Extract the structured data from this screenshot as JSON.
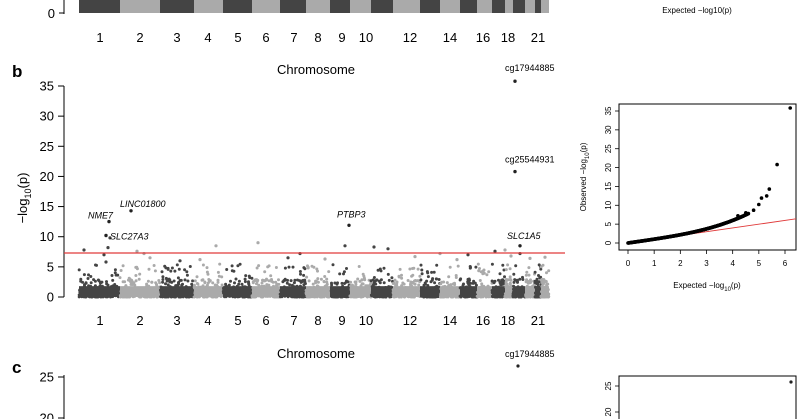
{
  "panels": {
    "a": {
      "chrom_ticks": [
        "1",
        "2",
        "3",
        "4",
        "5",
        "6",
        "7",
        "8",
        "9",
        "10",
        "12",
        "14",
        "16",
        "18",
        "21"
      ],
      "y_ticks_visible": [
        0
      ],
      "qq_xlabel": "Expected −log10(p)"
    },
    "b": {
      "letter": "b",
      "title": "Chromosome",
      "xlabel": "Chromosome",
      "ylabel": "−log10(p)",
      "qq_xlabel": "Expected −log10(p)",
      "qq_ylabel": "Observed −log10(p)"
    },
    "c": {
      "letter": "c",
      "title": "Chromosome",
      "probe_label": "cg17944885",
      "y_ticks": [
        20,
        25
      ],
      "qq_y_ticks": [
        20,
        25
      ],
      "top_point": 26.1
    }
  },
  "chart_data": [
    {
      "type": "scatter",
      "subtype": "manhattan",
      "panel": "b",
      "title": "Chromosome",
      "xlabel": "Chromosome",
      "ylabel": "−log10(p)",
      "ylim": [
        0,
        35
      ],
      "y_ticks": [
        0,
        5,
        10,
        15,
        20,
        25,
        30,
        35
      ],
      "chromosomes": [
        "1",
        "2",
        "3",
        "4",
        "5",
        "6",
        "7",
        "8",
        "9",
        "10",
        "11",
        "12",
        "13",
        "14",
        "15",
        "16",
        "17",
        "18",
        "19",
        "20",
        "21",
        "22"
      ],
      "chrom_tick_labels": [
        "1",
        "2",
        "3",
        "4",
        "5",
        "6",
        "7",
        "8",
        "9",
        "10",
        "12",
        "14",
        "16",
        "18",
        "21"
      ],
      "significance_threshold": 7.3,
      "threshold_color": "#e03a3a",
      "colors": [
        "#444444",
        "#aaaaaa"
      ],
      "annotated_points": [
        {
          "label": "cg17944885",
          "chrom": "19",
          "y": 35.8
        },
        {
          "label": "cg25544931",
          "chrom": "19",
          "y": 20.8
        },
        {
          "label": "LINC01800",
          "chrom": "1",
          "y": 14.3,
          "italic": true
        },
        {
          "label": "NME7",
          "chrom": "1",
          "y": 12.5,
          "italic": true
        },
        {
          "label": "SLC27A3",
          "chrom": "1",
          "y": 10.2,
          "italic": true
        },
        {
          "label": "PTBP3",
          "chrom": "9",
          "y": 11.9,
          "italic": true
        },
        {
          "label": "SLC1A5",
          "chrom": "19",
          "y": 8.5,
          "italic": true
        }
      ],
      "labels": {
        "cg17944885": "cg17944885",
        "cg25544931": "cg25544931",
        "LINC01800": "LINC01800",
        "NME7": "NME7",
        "SLC27A3": "SLC27A3",
        "PTBP3": "PTBP3",
        "SLC1A5": "SLC1A5"
      }
    },
    {
      "type": "scatter",
      "subtype": "qq",
      "panel": "b",
      "xlabel": "Expected −log10(p)",
      "ylabel": "Observed −log10(p)",
      "xlim": [
        0,
        6.4
      ],
      "ylim": [
        0,
        36
      ],
      "x_ticks": [
        0,
        1,
        2,
        3,
        4,
        5,
        6
      ],
      "y_ticks": [
        0,
        5,
        10,
        15,
        20,
        25,
        30,
        35
      ],
      "tail_points": [
        {
          "x": 4.2,
          "y": 7.2
        },
        {
          "x": 4.5,
          "y": 8.0
        },
        {
          "x": 4.8,
          "y": 8.7
        },
        {
          "x": 5.0,
          "y": 10.2
        },
        {
          "x": 5.1,
          "y": 11.9
        },
        {
          "x": 5.3,
          "y": 12.5
        },
        {
          "x": 5.4,
          "y": 14.3
        },
        {
          "x": 5.7,
          "y": 20.8
        },
        {
          "x": 6.2,
          "y": 35.8
        }
      ],
      "reference_line_color": "#e03a3a",
      "reference_line_end_y": 6.4
    }
  ]
}
